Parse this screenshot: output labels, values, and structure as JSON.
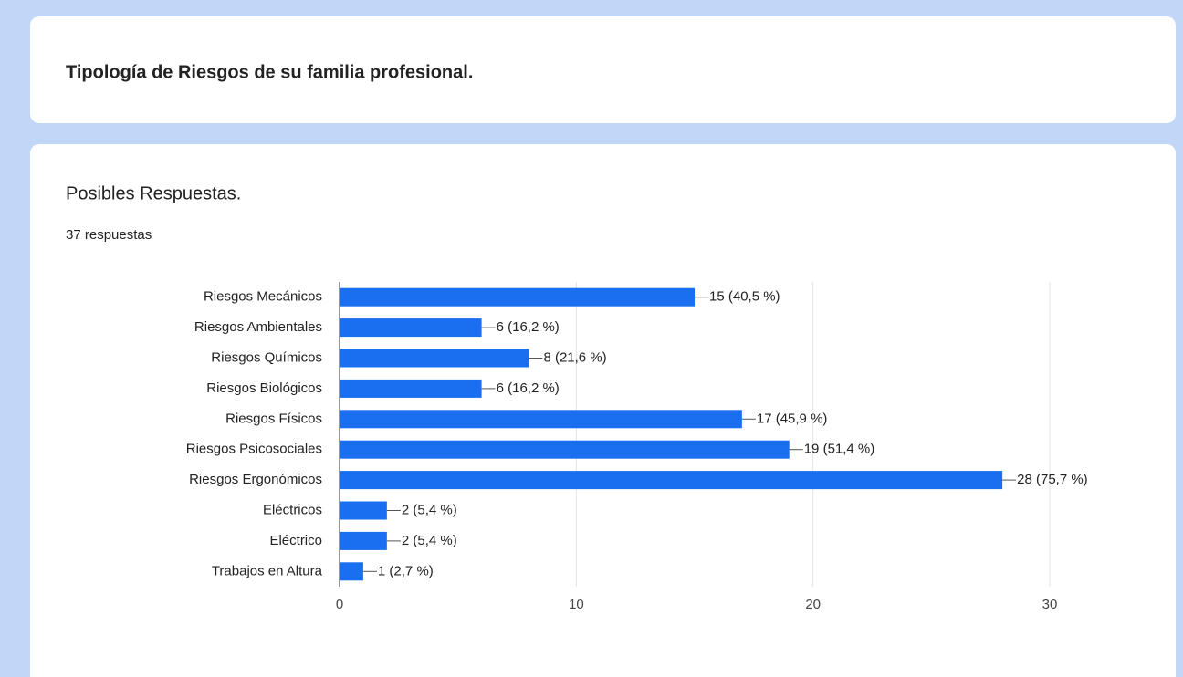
{
  "header": {
    "title": "Tipología de Riesgos de su familia profesional."
  },
  "card": {
    "title": "Posibles Respuestas.",
    "subtitle": "37 respuestas"
  },
  "chart_data": {
    "type": "bar",
    "orientation": "horizontal",
    "categories": [
      "Riesgos Mecánicos",
      "Riesgos Ambientales",
      "Riesgos Químicos",
      "Riesgos Biológicos",
      "Riesgos Físicos",
      "Riesgos Psicosociales",
      "Riesgos Ergonómicos",
      "Eléctricos",
      "Eléctrico",
      "Trabajos en Altura"
    ],
    "values": [
      15,
      6,
      8,
      6,
      17,
      19,
      28,
      2,
      2,
      1
    ],
    "value_labels": [
      "15 (40,5 %)",
      "6 (16,2 %)",
      "8 (21,6 %)",
      "6 (16,2 %)",
      "17 (45,9 %)",
      "19 (51,4 %)",
      "28 (75,7 %)",
      "2 (5,4 %)",
      "2 (5,4 %)",
      "1 (2,7 %)"
    ],
    "color": "#1a6ff0",
    "xlim": [
      0,
      30
    ],
    "xticks": [
      0,
      10,
      20,
      30
    ],
    "grid": true
  }
}
